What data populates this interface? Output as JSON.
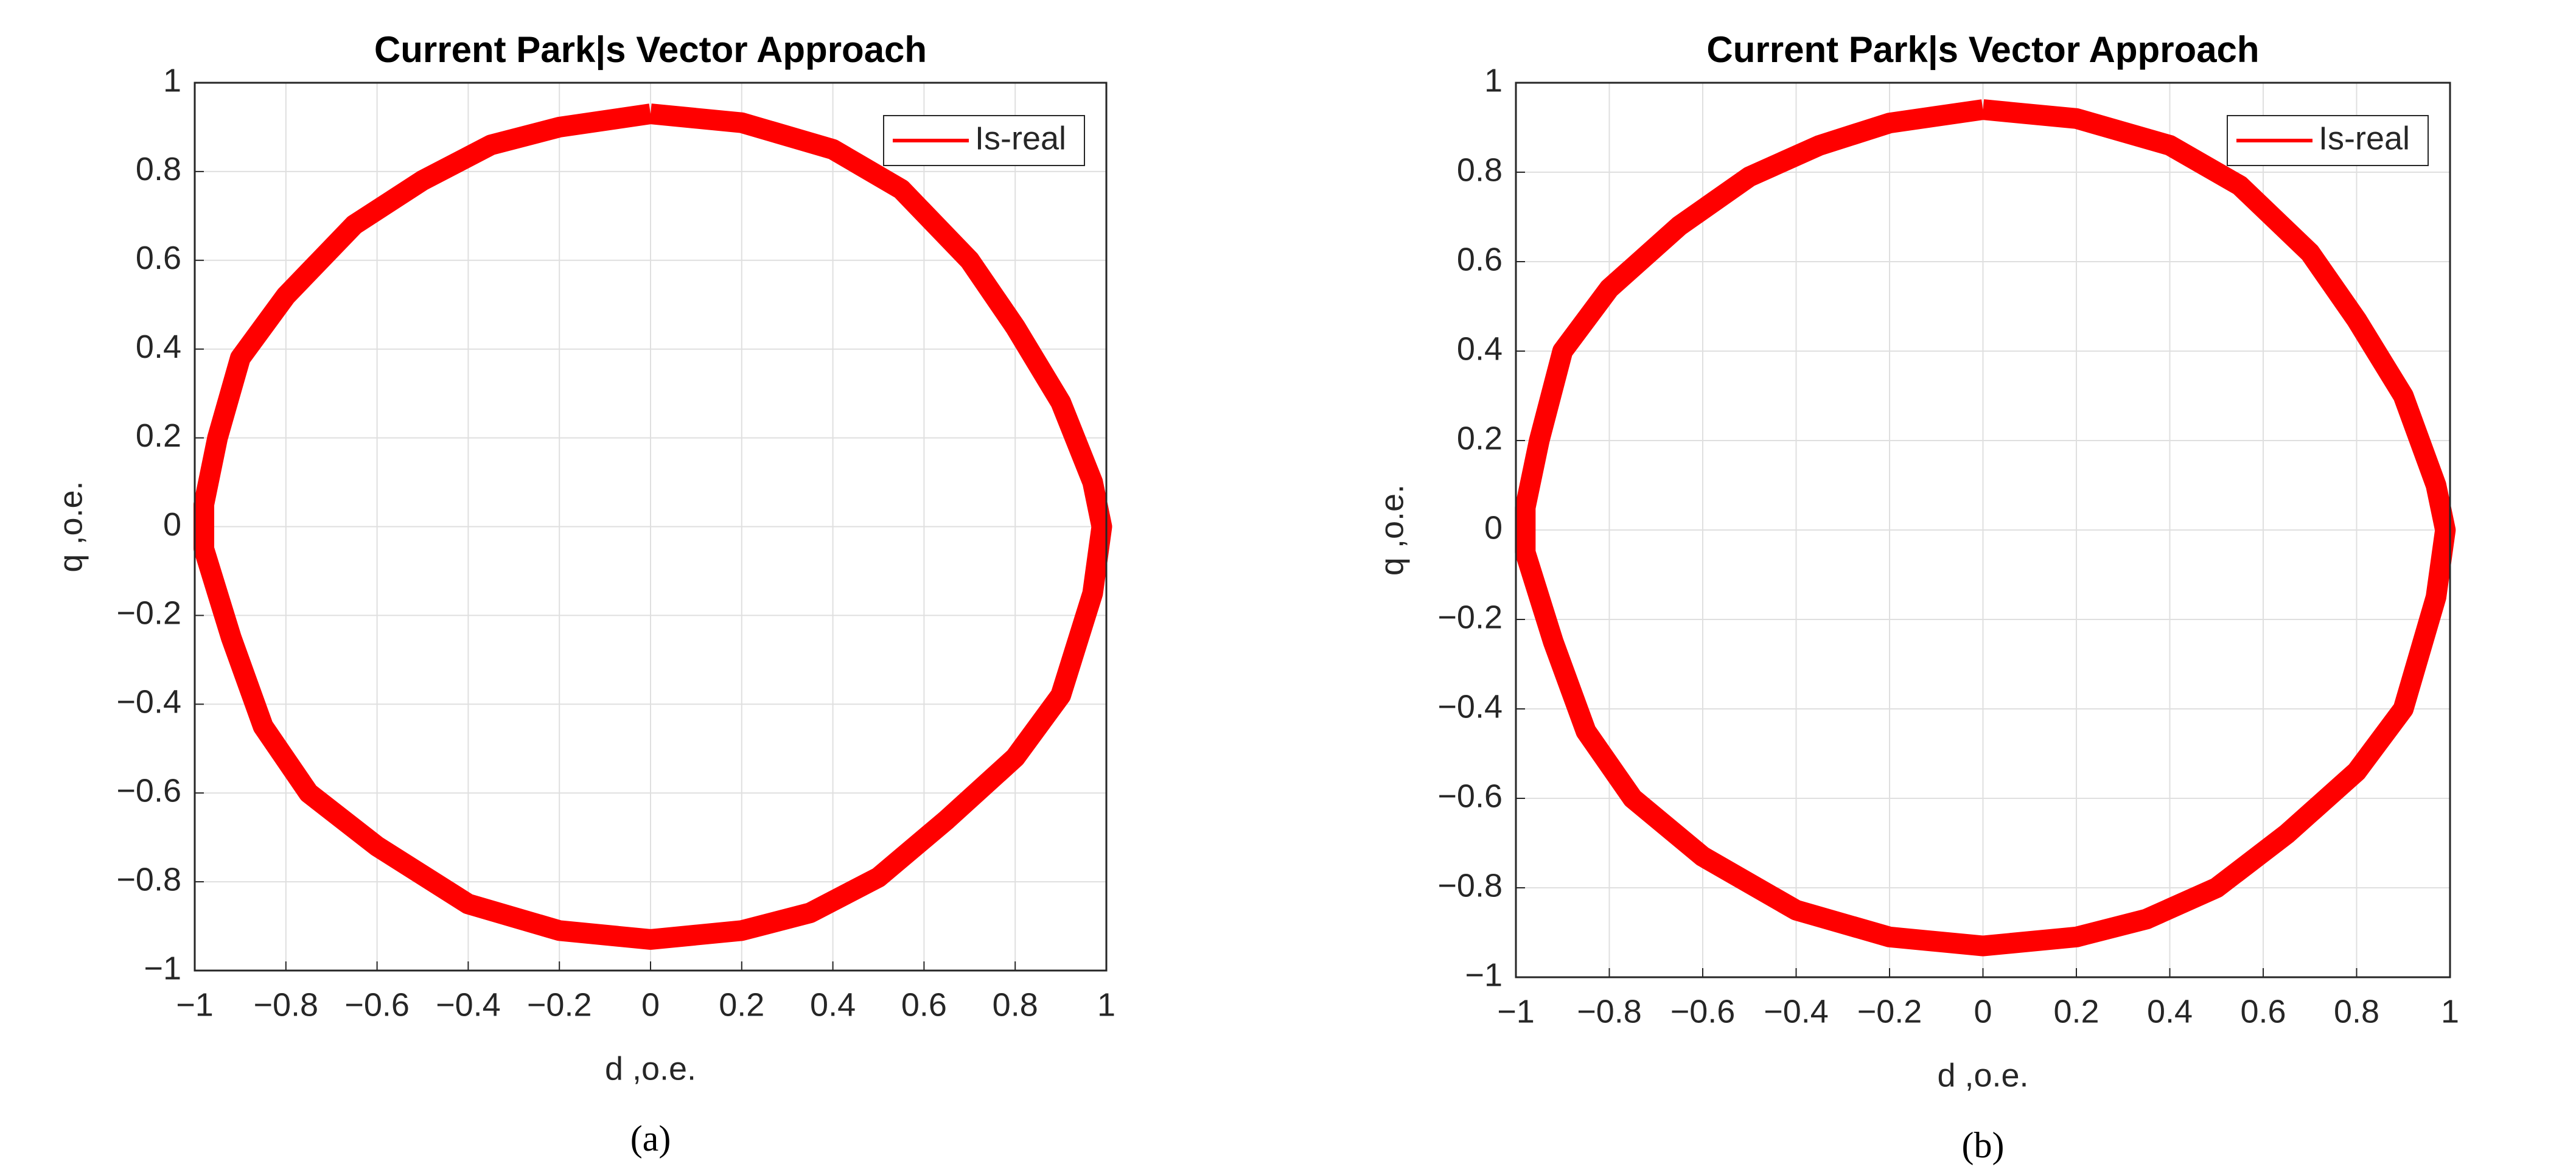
{
  "chart_data": [
    {
      "type": "line",
      "title": "Current Park|s Vector Approach",
      "x_label": "d ,o.e.",
      "y_label": "q ,o.e.",
      "caption": "(a)",
      "x": [
        0,
        0.2,
        0.4,
        0.55,
        0.7,
        0.8,
        0.9,
        0.97,
        0.99,
        0.97,
        0.9,
        0.8,
        0.65,
        0.5,
        0.35,
        0.2,
        0,
        -0.2,
        -0.4,
        -0.6,
        -0.75,
        -0.85,
        -0.92,
        -0.98,
        -0.98,
        -0.95,
        -0.9,
        -0.8,
        -0.65,
        -0.5,
        -0.35,
        -0.2,
        0
      ],
      "series": [
        {
          "name": "Is-real",
          "color": "#ff0000",
          "values": [
            0.93,
            0.91,
            0.85,
            0.76,
            0.6,
            0.45,
            0.28,
            0.1,
            0,
            -0.15,
            -0.38,
            -0.52,
            -0.66,
            -0.79,
            -0.87,
            -0.91,
            -0.93,
            -0.91,
            -0.85,
            -0.72,
            -0.6,
            -0.45,
            -0.25,
            -0.05,
            0.05,
            0.2,
            0.38,
            0.52,
            0.68,
            0.78,
            0.86,
            0.9,
            0.93
          ]
        }
      ],
      "xlim": [
        -1,
        1
      ],
      "ylim": [
        -1,
        1
      ],
      "xticks": [
        {
          "value": -1,
          "label": "−1"
        },
        {
          "value": -0.8,
          "label": "−0.8"
        },
        {
          "value": -0.6,
          "label": "−0.6"
        },
        {
          "value": -0.4,
          "label": "−0.4"
        },
        {
          "value": -0.2,
          "label": "−0.2"
        },
        0,
        0.2,
        0.4,
        0.6,
        0.8,
        1
      ],
      "yticks": [
        {
          "value": -1,
          "label": "−1"
        },
        {
          "value": -0.8,
          "label": "−0.8"
        },
        {
          "value": -0.6,
          "label": "−0.6"
        },
        {
          "value": -0.4,
          "label": "−0.4"
        },
        {
          "value": -0.2,
          "label": "−0.2"
        },
        0,
        0.2,
        0.4,
        0.6,
        0.8,
        1
      ],
      "grid": true,
      "legend": "upper right"
    },
    {
      "type": "line",
      "title": "Current Park|s Vector Approach",
      "x_label": "d ,o.e.",
      "y_label": "q ,o.e.",
      "caption": "(b)",
      "x": [
        0,
        0.2,
        0.4,
        0.55,
        0.7,
        0.8,
        0.9,
        0.97,
        0.99,
        0.97,
        0.9,
        0.8,
        0.65,
        0.5,
        0.35,
        0.2,
        0,
        -0.2,
        -0.4,
        -0.6,
        -0.75,
        -0.85,
        -0.92,
        -0.98,
        -0.98,
        -0.95,
        -0.9,
        -0.8,
        -0.65,
        -0.5,
        -0.35,
        -0.2,
        0
      ],
      "series": [
        {
          "name": "Is-real",
          "color": "#ff0000",
          "values": [
            0.94,
            0.92,
            0.86,
            0.77,
            0.62,
            0.47,
            0.3,
            0.1,
            0,
            -0.15,
            -0.4,
            -0.54,
            -0.68,
            -0.8,
            -0.87,
            -0.91,
            -0.93,
            -0.91,
            -0.85,
            -0.73,
            -0.6,
            -0.45,
            -0.25,
            -0.05,
            0.05,
            0.2,
            0.4,
            0.54,
            0.68,
            0.79,
            0.86,
            0.91,
            0.94
          ]
        }
      ],
      "xlim": [
        -1,
        1
      ],
      "ylim": [
        -1,
        1
      ],
      "xticks": [
        {
          "value": -1,
          "label": "−1"
        },
        {
          "value": -0.8,
          "label": "−0.8"
        },
        {
          "value": -0.6,
          "label": "−0.6"
        },
        {
          "value": -0.4,
          "label": "−0.4"
        },
        {
          "value": -0.2,
          "label": "−0.2"
        },
        0,
        0.2,
        0.4,
        0.6,
        0.8,
        1
      ],
      "yticks": [
        {
          "value": -1,
          "label": "−1"
        },
        {
          "value": -0.8,
          "label": "−0.8"
        },
        {
          "value": -0.6,
          "label": "−0.6"
        },
        {
          "value": -0.4,
          "label": "−0.4"
        },
        {
          "value": -0.2,
          "label": "−0.2"
        },
        0,
        0.2,
        0.4,
        0.6,
        0.8,
        1
      ],
      "grid": true,
      "legend": "upper right"
    }
  ]
}
